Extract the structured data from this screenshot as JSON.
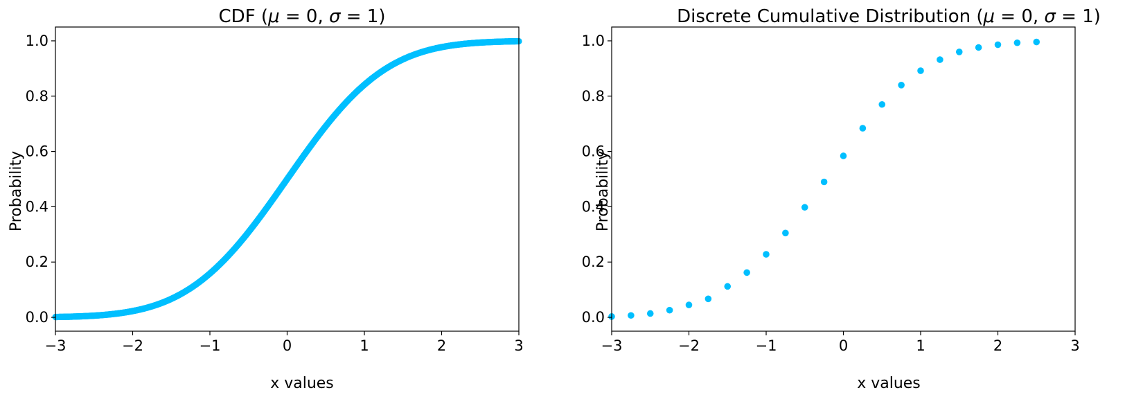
{
  "chart_data": [
    {
      "type": "scatter",
      "title_parts": [
        "CDF (",
        "μ",
        " = 0, ",
        "σ",
        " = 1)"
      ],
      "xlabel": "x values",
      "ylabel": "Probability",
      "xlim": [
        -3,
        3
      ],
      "ylim": [
        -0.05,
        1.05
      ],
      "xticks": [
        -3,
        -2,
        -1,
        0,
        1,
        2,
        3
      ],
      "xtick_labels": [
        "−3",
        "−2",
        "−1",
        "0",
        "1",
        "2",
        "3"
      ],
      "yticks": [
        0.0,
        0.2,
        0.4,
        0.6,
        0.8,
        1.0
      ],
      "ytick_labels": [
        "0.0",
        "0.2",
        "0.4",
        "0.6",
        "0.8",
        "1.0"
      ],
      "grid": false,
      "color": "#00bfff",
      "series": [
        {
          "function": "normal_cdf",
          "mu": 0,
          "sigma": 1,
          "x": [
            -3.0,
            -2.9,
            -2.8,
            -2.7,
            -2.6,
            -2.5,
            -2.4,
            -2.3,
            -2.2,
            -2.1,
            -2.0,
            -1.9,
            -1.8,
            -1.7,
            -1.6,
            -1.5,
            -1.4,
            -1.3,
            -1.2,
            -1.1,
            -1.0,
            -0.9,
            -0.8,
            -0.7,
            -0.6,
            -0.5,
            -0.4,
            -0.3,
            -0.2,
            -0.1,
            0.0,
            0.1,
            0.2,
            0.3,
            0.4,
            0.5,
            0.6,
            0.7,
            0.8,
            0.9,
            1.0,
            1.1,
            1.2,
            1.3,
            1.4,
            1.5,
            1.6,
            1.7,
            1.8,
            1.9,
            2.0,
            2.1,
            2.2,
            2.3,
            2.4,
            2.5,
            2.6,
            2.7,
            2.8,
            2.9,
            3.0
          ],
          "y": [
            0.001,
            0.002,
            0.003,
            0.003,
            0.005,
            0.006,
            0.008,
            0.011,
            0.014,
            0.018,
            0.023,
            0.029,
            0.036,
            0.045,
            0.055,
            0.067,
            0.081,
            0.097,
            0.115,
            0.136,
            0.159,
            0.184,
            0.212,
            0.242,
            0.274,
            0.309,
            0.345,
            0.382,
            0.421,
            0.46,
            0.5,
            0.54,
            0.579,
            0.618,
            0.655,
            0.691,
            0.726,
            0.758,
            0.788,
            0.816,
            0.841,
            0.864,
            0.885,
            0.903,
            0.919,
            0.933,
            0.945,
            0.955,
            0.964,
            0.971,
            0.977,
            0.982,
            0.986,
            0.989,
            0.992,
            0.994,
            0.995,
            0.997,
            0.997,
            0.998,
            0.999
          ]
        }
      ]
    },
    {
      "type": "scatter",
      "title_parts": [
        "Discrete Cumulative Distribution (",
        "μ",
        " = 0, ",
        "σ",
        " = 1)"
      ],
      "xlabel": "x values",
      "ylabel": "Probability",
      "xlim": [
        -3,
        3
      ],
      "ylim": [
        -0.05,
        1.05
      ],
      "xticks": [
        -3,
        -2,
        -1,
        0,
        1,
        2,
        3
      ],
      "xtick_labels": [
        "−3",
        "−2",
        "−1",
        "0",
        "1",
        "2",
        "3"
      ],
      "yticks": [
        0.0,
        0.2,
        0.4,
        0.6,
        0.8,
        1.0
      ],
      "ytick_labels": [
        "0.0",
        "0.2",
        "0.4",
        "0.6",
        "0.8",
        "1.0"
      ],
      "grid": false,
      "color": "#00bfff",
      "series": [
        {
          "x": [
            -3.0,
            -2.75,
            -2.5,
            -2.25,
            -2.0,
            -1.75,
            -1.5,
            -1.25,
            -1.0,
            -0.75,
            -0.5,
            -0.25,
            0.0,
            0.25,
            0.5,
            0.75,
            1.0,
            1.25,
            1.5,
            1.75,
            2.0,
            2.25,
            2.5
          ],
          "y": [
            0.003,
            0.007,
            0.014,
            0.026,
            0.045,
            0.067,
            0.112,
            0.162,
            0.228,
            0.305,
            0.398,
            0.49,
            0.584,
            0.684,
            0.77,
            0.84,
            0.892,
            0.932,
            0.96,
            0.976,
            0.986,
            0.993,
            0.996
          ]
        }
      ]
    }
  ]
}
